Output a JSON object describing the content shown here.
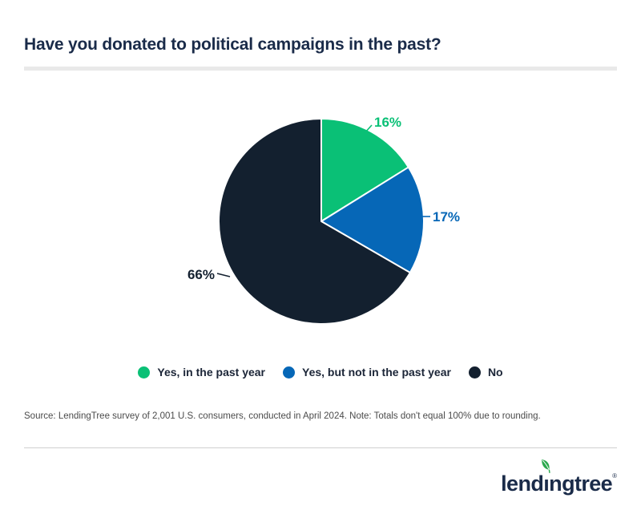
{
  "header": {
    "title": "Have you donated to political campaigns in the past?"
  },
  "chart_data": {
    "type": "pie",
    "title": "Have you donated to political campaigns in the past?",
    "start_angle": "top",
    "direction": "clockwise",
    "legend_position": "bottom",
    "slices": [
      {
        "label": "Yes, in the past year",
        "value": 16,
        "display": "16%",
        "color": "#0ac076"
      },
      {
        "label": "Yes, but not in the past year",
        "value": 17,
        "display": "17%",
        "color": "#0667b7"
      },
      {
        "label": "No",
        "value": 66,
        "display": "66%",
        "color": "#13202f"
      }
    ],
    "note": "Totals don't equal 100% due to rounding"
  },
  "footer": {
    "source": "Source: LendingTree survey of 2,001 U.S. consumers, conducted in April 2024. Note: Totals don't equal 100% due to rounding.",
    "logo": {
      "pre": "lend",
      "dotless_i": "ı",
      "post": "ngtree",
      "registered": "®",
      "leaf_color": "#2ba84d",
      "text_color": "#1a2b49"
    }
  },
  "colors": {
    "title": "#1a2b49",
    "title_divider": "#e9e9e9",
    "footer_rule": "#cfcfcf",
    "source_text": "#4b4b4b",
    "legend_text": "#1b2537",
    "background": "#ffffff"
  }
}
